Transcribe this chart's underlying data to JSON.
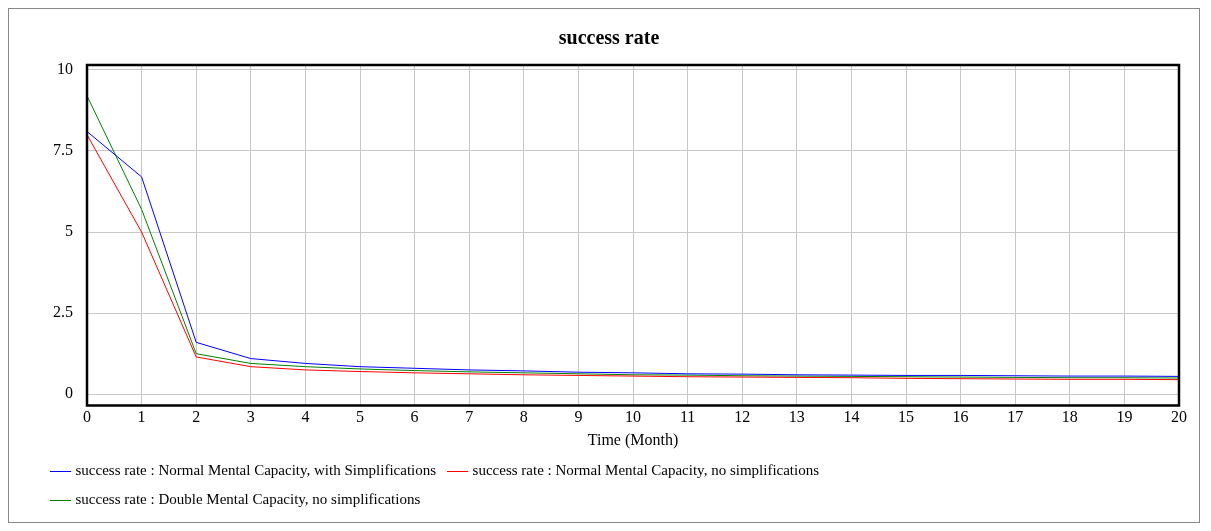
{
  "chart_data": {
    "type": "line",
    "title": "success rate",
    "xlabel": "Time (Month)",
    "x": [
      0,
      1,
      2,
      3,
      4,
      5,
      6,
      7,
      8,
      9,
      10,
      11,
      12,
      13,
      14,
      15,
      16,
      17,
      18,
      19,
      20
    ],
    "xlim": [
      0,
      20
    ],
    "xticks": [
      0,
      1,
      2,
      3,
      4,
      5,
      6,
      7,
      8,
      9,
      10,
      11,
      12,
      13,
      14,
      15,
      16,
      17,
      18,
      19,
      20
    ],
    "ylim": [
      -0.35,
      10.15
    ],
    "yticks": [
      0,
      2.5,
      5,
      7.5,
      10
    ],
    "grid": true,
    "legend": "bottom",
    "marker": "none",
    "series": [
      {
        "name": "success rate : Normal Mental Capacity, with Simplifications",
        "color": "#0000ff",
        "values": [
          8.1,
          6.7,
          1.6,
          1.1,
          0.95,
          0.85,
          0.8,
          0.75,
          0.72,
          0.68,
          0.66,
          0.63,
          0.62,
          0.6,
          0.59,
          0.58,
          0.58,
          0.57,
          0.56,
          0.56,
          0.55
        ]
      },
      {
        "name": "success rate : Normal Mental Capacity, no simplifications",
        "color": "#ff0000",
        "values": [
          8.0,
          5.0,
          1.15,
          0.85,
          0.75,
          0.7,
          0.66,
          0.63,
          0.6,
          0.58,
          0.56,
          0.54,
          0.53,
          0.52,
          0.51,
          0.49,
          0.48,
          0.47,
          0.46,
          0.46,
          0.45
        ]
      },
      {
        "name": "success rate : Double Mental Capacity, no simplifications",
        "color": "#008000",
        "values": [
          9.2,
          5.7,
          1.25,
          0.95,
          0.85,
          0.78,
          0.73,
          0.69,
          0.66,
          0.63,
          0.6,
          0.59,
          0.57,
          0.56,
          0.55,
          0.54,
          0.53,
          0.52,
          0.51,
          0.51,
          0.5
        ]
      }
    ]
  }
}
